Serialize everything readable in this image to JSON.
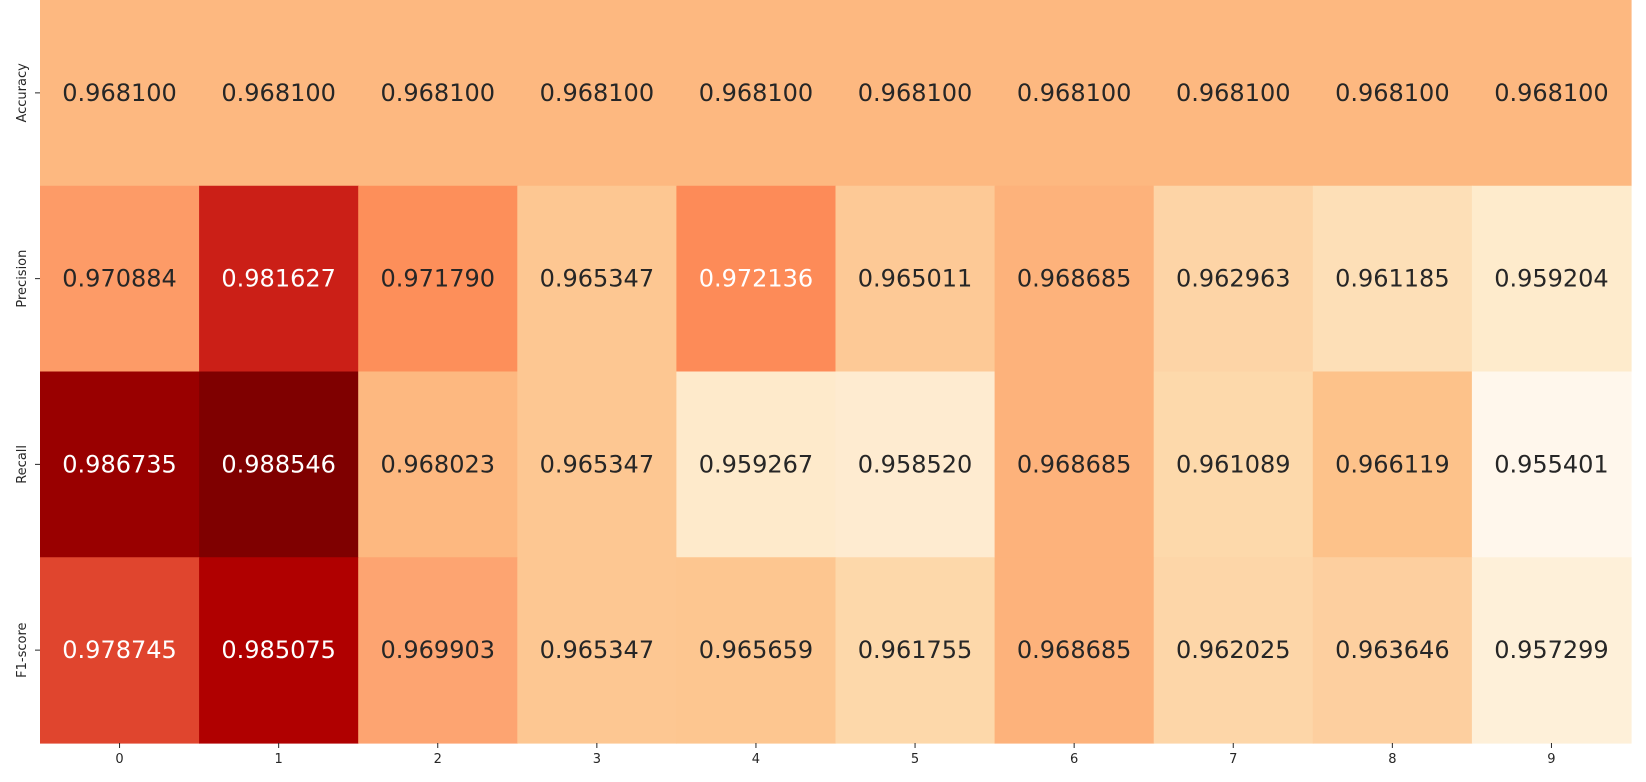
{
  "chart_data": {
    "type": "heatmap",
    "title": "",
    "xlabel": "",
    "ylabel": "",
    "colormap": "OrRd",
    "colorbar": false,
    "x_categories": [
      "0",
      "1",
      "2",
      "3",
      "4",
      "5",
      "6",
      "7",
      "8",
      "9"
    ],
    "y_categories": [
      "Accuracy",
      "Precision",
      "Recall",
      "F1-score"
    ],
    "values": [
      [
        0.9681,
        0.9681,
        0.9681,
        0.9681,
        0.9681,
        0.9681,
        0.9681,
        0.9681,
        0.9681,
        0.9681
      ],
      [
        0.970884,
        0.981627,
        0.97179,
        0.965347,
        0.972136,
        0.965011,
        0.968685,
        0.962963,
        0.961185,
        0.959204
      ],
      [
        0.986735,
        0.988546,
        0.968023,
        0.965347,
        0.959267,
        0.95852,
        0.968685,
        0.961089,
        0.966119,
        0.955401
      ],
      [
        0.978745,
        0.985075,
        0.969903,
        0.965347,
        0.965659,
        0.961755,
        0.968685,
        0.962025,
        0.963646,
        0.957299
      ]
    ],
    "labels": [
      [
        "0.968100",
        "0.968100",
        "0.968100",
        "0.968100",
        "0.968100",
        "0.968100",
        "0.968100",
        "0.968100",
        "0.968100",
        "0.968100"
      ],
      [
        "0.970884",
        "0.981627",
        "0.971790",
        "0.965347",
        "0.972136",
        "0.965011",
        "0.968685",
        "0.962963",
        "0.961185",
        "0.959204"
      ],
      [
        "0.986735",
        "0.988546",
        "0.968023",
        "0.965347",
        "0.959267",
        "0.958520",
        "0.968685",
        "0.961089",
        "0.966119",
        "0.955401"
      ],
      [
        "0.978745",
        "0.985075",
        "0.969903",
        "0.965347",
        "0.965659",
        "0.961755",
        "0.968685",
        "0.962025",
        "0.963646",
        "0.957299"
      ]
    ],
    "colors": [
      [
        "#fdb880",
        "#fdb880",
        "#fdb880",
        "#fdb880",
        "#fdb880",
        "#fdb880",
        "#fdb880",
        "#fdb880",
        "#fdb880",
        "#fdb880"
      ],
      [
        "#fd9b67",
        "#cb1f17",
        "#fd8f5a",
        "#fdc792",
        "#fd8b58",
        "#fdc996",
        "#fdb27b",
        "#fdd4a6",
        "#fddfb7",
        "#feebcc"
      ],
      [
        "#990000",
        "#7f0000",
        "#fdb880",
        "#fdc792",
        "#feeacb",
        "#feebd0",
        "#fdb27b",
        "#fdd9ab",
        "#fdc28a",
        "#fff7ec"
      ],
      [
        "#e0452e",
        "#b00000",
        "#fda471",
        "#fdc792",
        "#fdc690",
        "#fdd8aa",
        "#fdb27b",
        "#fdd6a8",
        "#fdcf9f",
        "#fef0d9"
      ]
    ],
    "text_colors": [
      [
        "#262626",
        "#262626",
        "#262626",
        "#262626",
        "#262626",
        "#262626",
        "#262626",
        "#262626",
        "#262626",
        "#262626"
      ],
      [
        "#262626",
        "#ffffff",
        "#262626",
        "#262626",
        "#ffffff",
        "#262626",
        "#262626",
        "#262626",
        "#262626",
        "#262626"
      ],
      [
        "#ffffff",
        "#ffffff",
        "#262626",
        "#262626",
        "#262626",
        "#262626",
        "#262626",
        "#262626",
        "#262626",
        "#262626"
      ],
      [
        "#ffffff",
        "#ffffff",
        "#262626",
        "#262626",
        "#262626",
        "#262626",
        "#262626",
        "#262626",
        "#262626",
        "#262626"
      ]
    ]
  }
}
